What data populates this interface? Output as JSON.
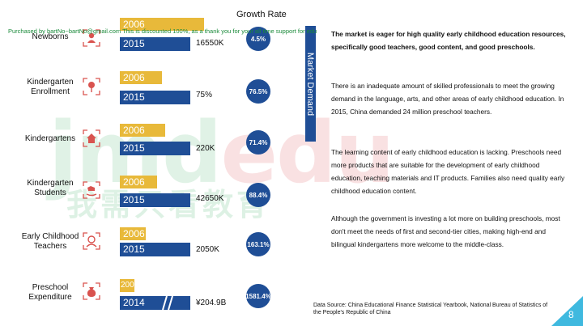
{
  "header": {
    "growth_rate_label": "Growth Rate"
  },
  "watermark": {
    "notice": "Purchased by bartNo~bartNo@gmail.com This is discounted 100%, as a thank you for your all time support for edu",
    "logo_part1": "jmd",
    "logo_part2": "edu",
    "logo_cn": "我需只看教育"
  },
  "rows": [
    {
      "label": "Newborns",
      "icon": "baby-icon",
      "bar_2006_label": "2006",
      "bar_2015_label": "2015",
      "value": "16550K",
      "growth": "4.5%"
    },
    {
      "label": "Kindergarten Enrollment",
      "icon": "flower-icon",
      "bar_2006_label": "2006",
      "bar_2015_label": "2015",
      "value": "75%",
      "growth": "76.5%"
    },
    {
      "label": "Kindergartens",
      "icon": "house-icon",
      "bar_2006_label": "2006",
      "bar_2015_label": "2015",
      "value": "220K",
      "growth": "71.4%"
    },
    {
      "label": "Kindergarten Students",
      "icon": "rocking-horse-icon",
      "bar_2006_label": "2006",
      "bar_2015_label": "2015",
      "value": "42650K",
      "growth": "88.4%"
    },
    {
      "label": "Early Childhood Teachers",
      "icon": "teacher-icon",
      "bar_2006_label": "2006",
      "bar_2015_label": "2015",
      "value": "2050K",
      "growth": "163.1%"
    },
    {
      "label": "Preschool Expenditure",
      "icon": "money-bag-icon",
      "bar_2006_label": "200",
      "bar_2015_label": "2014",
      "value": "¥204.9B",
      "growth": "1581.4%"
    }
  ],
  "market_demand_label": "Market Demand",
  "paragraphs": [
    "The market is eager for high quality early childhood education resources, specifically good teachers, good content,  and good preschools.",
    "There is an inadequate amount of skilled professionals to meet the growing demand in the language, arts, and other areas of early childhood education. In 2015, China demanded 24 million preschool teachers.",
    "The learning content of early childhood education is lacking. Preschools need more products that are suitable for the development of early childhood education, teaching materials and IT products. Families also need quality early childhood education content.",
    "Although the government is investing a lot more on building preschools, most don't meet the needs of first and second-tier cities, making high-end and bilingual kindergartens more welcome to the middle-class."
  ],
  "source": "Data Source: China Educational Finance Statistical Yearbook, National Bureau of Statistics of the People's Republic of China",
  "page_number": "8",
  "colors": {
    "blue": "#1f4e96",
    "gold": "#e8b93a",
    "icon_red": "#d9534f",
    "corner_cyan": "#3fb9df"
  }
}
